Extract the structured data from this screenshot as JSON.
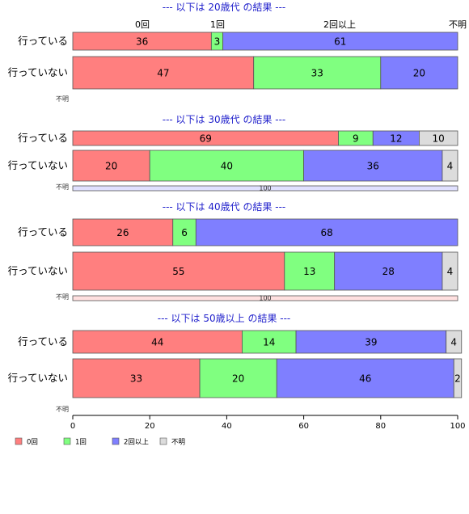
{
  "chart_data": {
    "type": "bar",
    "orientation": "horizontal",
    "stacked": true,
    "categories": [
      "0回",
      "1回",
      "2回以上",
      "不明"
    ],
    "colors": [
      "#ff7f7f",
      "#80ff80",
      "#7f7fff",
      "#dcdcdc"
    ],
    "top_category_labels": [
      "0回",
      "1回",
      "2回以上",
      "不明"
    ],
    "xlim": [
      0,
      100
    ],
    "xticks": [
      "0",
      "20",
      "40",
      "60",
      "80",
      "100"
    ],
    "legend_position": "bottom-left",
    "groups": [
      {
        "title": "--- 以下は 20歳代 の結果 ---",
        "rows": [
          {
            "label": "行っている",
            "values": [
              36,
              3,
              61,
              0
            ]
          },
          {
            "label": "行っていない",
            "values": [
              47,
              33,
              20,
              0
            ]
          },
          {
            "label": "不明",
            "values": [
              0,
              0,
              0,
              0
            ],
            "total_label": ""
          }
        ]
      },
      {
        "title": "--- 以下は 30歳代 の結果 ---",
        "rows": [
          {
            "label": "行っている",
            "values": [
              69,
              9,
              12,
              10
            ]
          },
          {
            "label": "行っていない",
            "values": [
              20,
              40,
              36,
              4
            ]
          },
          {
            "label": "不明",
            "values": [
              0,
              0,
              100,
              0
            ],
            "total_label": "100"
          }
        ]
      },
      {
        "title": "--- 以下は 40歳代 の結果 ---",
        "rows": [
          {
            "label": "行っている",
            "values": [
              26,
              6,
              68,
              0
            ]
          },
          {
            "label": "行っていない",
            "values": [
              55,
              13,
              28,
              4
            ]
          },
          {
            "label": "不明",
            "values": [
              100,
              0,
              0,
              0
            ],
            "total_label": "100"
          }
        ]
      },
      {
        "title": "--- 以下は 50歳以上 の結果 ---",
        "rows": [
          {
            "label": "行っている",
            "values": [
              44,
              14,
              39,
              4
            ]
          },
          {
            "label": "行っていない",
            "values": [
              33,
              20,
              46,
              2
            ]
          },
          {
            "label": "不明",
            "values": [
              0,
              0,
              0,
              0
            ],
            "total_label": ""
          }
        ]
      }
    ]
  }
}
